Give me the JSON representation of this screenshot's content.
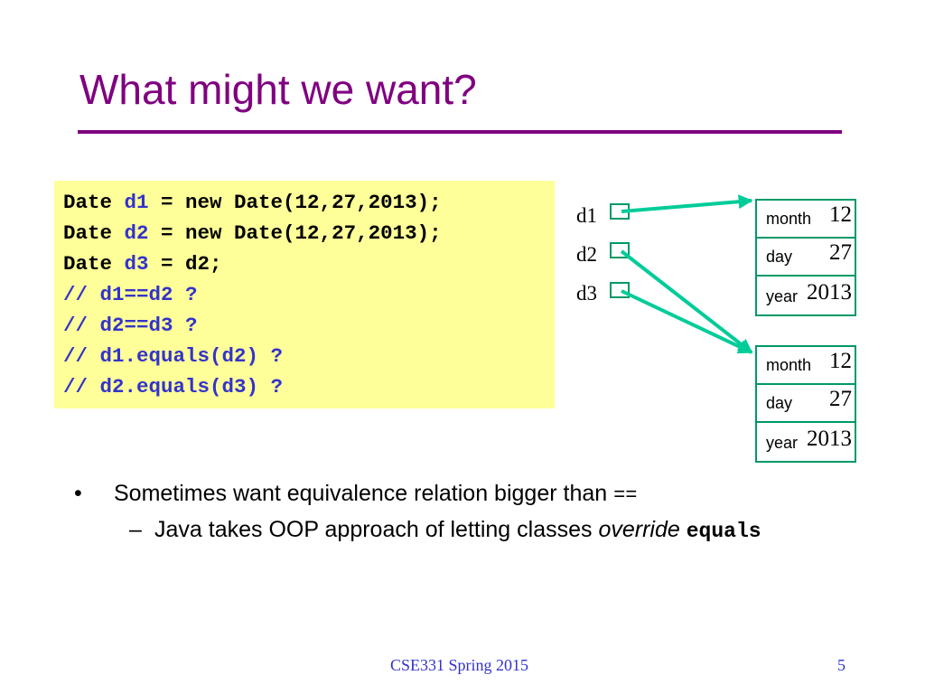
{
  "slide": {
    "title": "What might we want?",
    "code": {
      "line1": {
        "a": "Date ",
        "var": "d1",
        "b": " = new Date(12,27,2013);"
      },
      "line2": {
        "a": "Date ",
        "var": "d2",
        "b": " = new Date(12,27,2013);"
      },
      "line3": {
        "a": "Date ",
        "var": "d3",
        "b": " = d2;"
      },
      "comment1": "// d1==d2 ?",
      "comment2": "// d2==d3 ?",
      "comment3": "// d1.equals(d2) ?",
      "comment4": "// d2.equals(d3) ?"
    },
    "diagram": {
      "refs": [
        "d1",
        "d2",
        "d3"
      ],
      "objects": [
        {
          "month_label": "month",
          "month": "12",
          "day_label": "day",
          "day": "27",
          "year_label": "year",
          "year": "2013"
        },
        {
          "month_label": "month",
          "month": "12",
          "day_label": "day",
          "day": "27",
          "year_label": "year",
          "year": "2013"
        }
      ],
      "colors": {
        "arrow": "#00cc99",
        "box": "#009966"
      }
    },
    "bullet": {
      "marker": "•",
      "text": "Sometimes want equivalence relation bigger than ",
      "code": "=="
    },
    "sub_bullet": {
      "marker": "–",
      "text": "Java takes OOP approach of letting classes ",
      "emphasis": "override",
      "code": "equals"
    },
    "footer": {
      "center": "CSE331 Spring 2015",
      "page": "5"
    },
    "colors": {
      "title": "#800080",
      "code_bg": "#ffff99",
      "code_var": "#3333cc"
    }
  }
}
